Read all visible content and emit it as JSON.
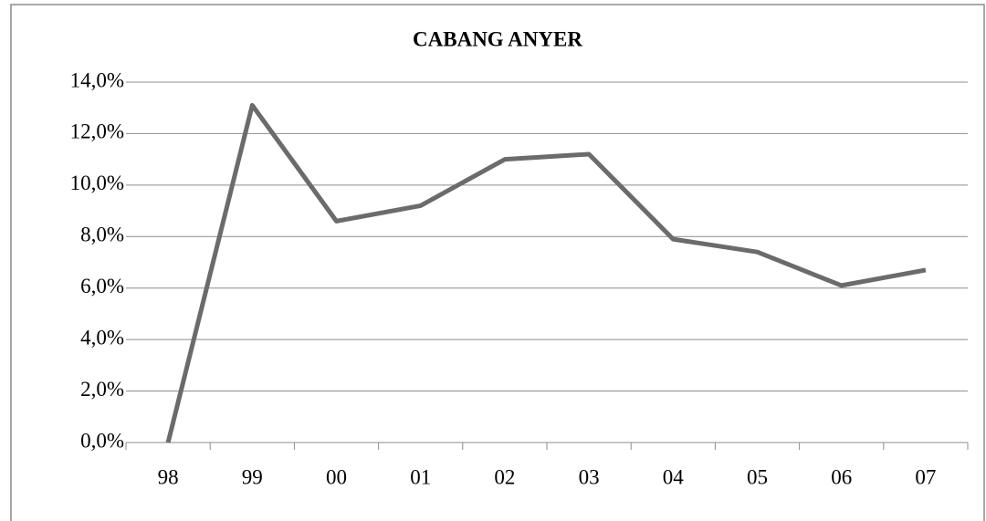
{
  "chart_data": {
    "type": "line",
    "title": "CABANG ANYER",
    "categories": [
      "98",
      "99",
      "00",
      "01",
      "02",
      "03",
      "04",
      "05",
      "06",
      "07"
    ],
    "series": [
      {
        "name": "CABANG ANYER",
        "color": "#6b6b6b",
        "values": [
          0,
          13.1,
          8.6,
          9.2,
          11.0,
          11.2,
          7.9,
          7.4,
          6.1,
          6.7
        ]
      }
    ],
    "ylim": [
      0,
      14
    ],
    "yticks": [
      {
        "value": 0,
        "label": "0,0%"
      },
      {
        "value": 2,
        "label": "2,0%"
      },
      {
        "value": 4,
        "label": "4,0%"
      },
      {
        "value": 6,
        "label": "6,0%"
      },
      {
        "value": 8,
        "label": "8,0%"
      },
      {
        "value": 10,
        "label": "10,0%"
      },
      {
        "value": 12,
        "label": "12,0%"
      },
      {
        "value": 14,
        "label": "14,0%"
      }
    ],
    "grid": true
  }
}
